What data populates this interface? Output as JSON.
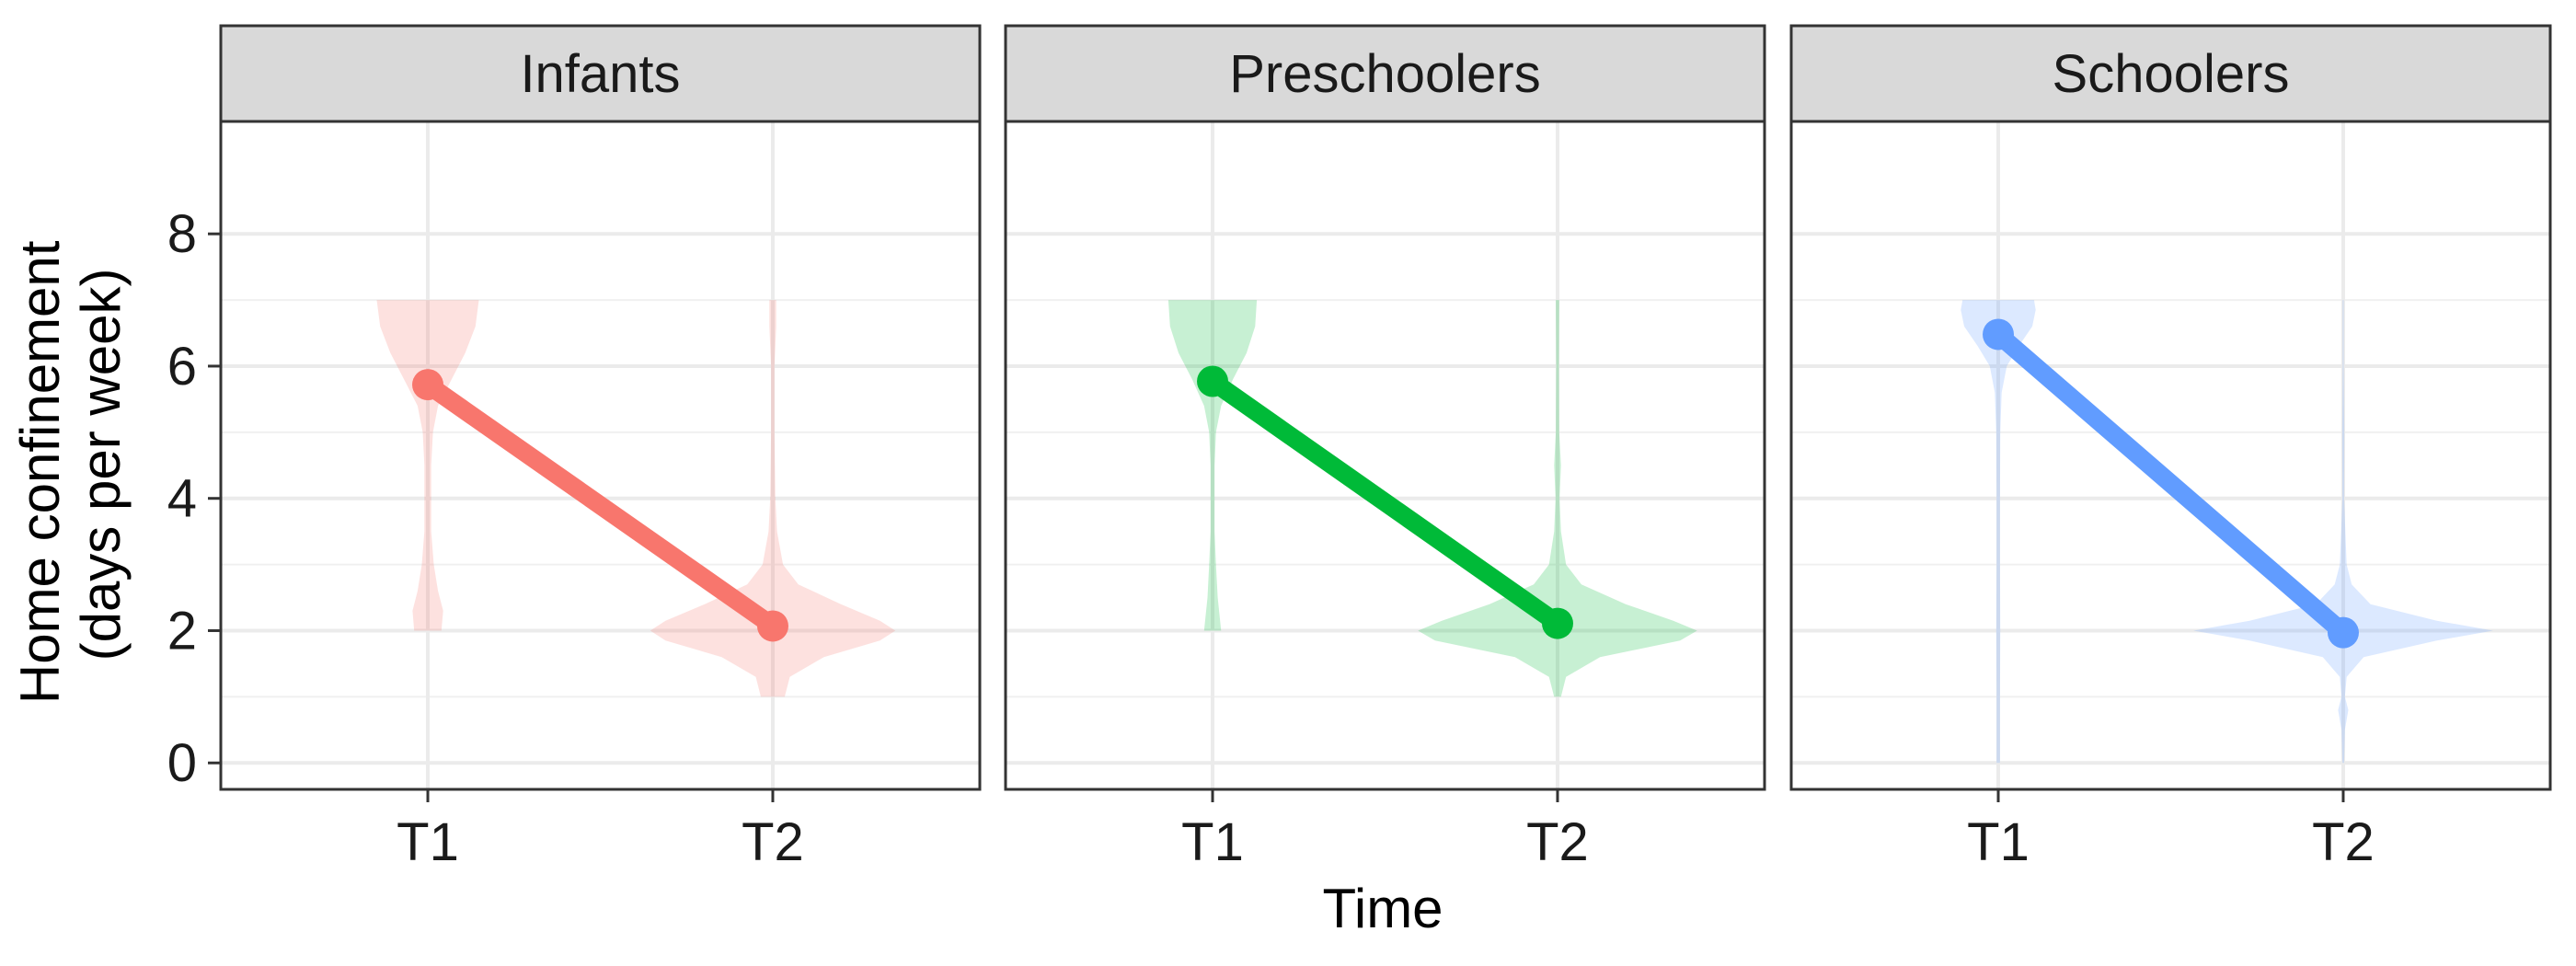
{
  "chart_data": {
    "type": "violin-line",
    "xlabel": "Time",
    "ylabel_lines": [
      "Home confinement",
      "(days per week)"
    ],
    "ylim": [
      -0.4,
      9.7
    ],
    "yticks": [
      0,
      2,
      4,
      6,
      8
    ],
    "categories": [
      "T1",
      "T2"
    ],
    "panels": [
      {
        "name": "Infants",
        "color": "#F8766D",
        "means": [
          5.72,
          2.07
        ],
        "violins": [
          {
            "category": "T1",
            "profile": [
              [
                2.0,
                0.08
              ],
              [
                2.3,
                0.09
              ],
              [
                2.6,
                0.06
              ],
              [
                3.0,
                0.035
              ],
              [
                3.5,
                0.02
              ],
              [
                4.0,
                0.02
              ],
              [
                4.5,
                0.02
              ],
              [
                5.0,
                0.03
              ],
              [
                5.4,
                0.06
              ],
              [
                5.8,
                0.14
              ],
              [
                6.2,
                0.22
              ],
              [
                6.6,
                0.28
              ],
              [
                7.0,
                0.3
              ]
            ]
          },
          {
            "category": "T2",
            "profile": [
              [
                1.0,
                0.07
              ],
              [
                1.3,
                0.1
              ],
              [
                1.6,
                0.3
              ],
              [
                1.85,
                0.63
              ],
              [
                2.0,
                0.72
              ],
              [
                2.15,
                0.63
              ],
              [
                2.4,
                0.4
              ],
              [
                2.7,
                0.15
              ],
              [
                3.0,
                0.06
              ],
              [
                3.5,
                0.025
              ],
              [
                4.0,
                0.015
              ],
              [
                5.0,
                0.01
              ],
              [
                6.0,
                0.01
              ],
              [
                6.6,
                0.02
              ],
              [
                7.0,
                0.02
              ]
            ]
          }
        ]
      },
      {
        "name": "Preschoolers",
        "color": "#00BA38",
        "means": [
          5.77,
          2.11
        ],
        "violins": [
          {
            "category": "T1",
            "profile": [
              [
                2.0,
                0.05
              ],
              [
                2.5,
                0.03
              ],
              [
                3.0,
                0.02
              ],
              [
                3.5,
                0.012
              ],
              [
                4.0,
                0.012
              ],
              [
                4.5,
                0.012
              ],
              [
                5.0,
                0.02
              ],
              [
                5.4,
                0.05
              ],
              [
                5.8,
                0.12
              ],
              [
                6.2,
                0.2
              ],
              [
                6.6,
                0.25
              ],
              [
                7.0,
                0.26
              ]
            ]
          },
          {
            "category": "T2",
            "profile": [
              [
                1.0,
                0.02
              ],
              [
                1.3,
                0.05
              ],
              [
                1.6,
                0.25
              ],
              [
                1.85,
                0.72
              ],
              [
                2.0,
                0.82
              ],
              [
                2.15,
                0.68
              ],
              [
                2.4,
                0.4
              ],
              [
                2.7,
                0.14
              ],
              [
                3.0,
                0.05
              ],
              [
                3.5,
                0.02
              ],
              [
                4.0,
                0.012
              ],
              [
                4.5,
                0.02
              ],
              [
                5.0,
                0.01
              ],
              [
                6.0,
                0.008
              ],
              [
                7.0,
                0.01
              ]
            ]
          }
        ]
      },
      {
        "name": "Schoolers",
        "color": "#619CFF",
        "means": [
          6.48,
          1.97
        ],
        "violins": [
          {
            "category": "T1",
            "profile": [
              [
                0.0,
                0.01
              ],
              [
                1.0,
                0.01
              ],
              [
                2.0,
                0.012
              ],
              [
                3.0,
                0.01
              ],
              [
                4.0,
                0.01
              ],
              [
                5.0,
                0.012
              ],
              [
                5.6,
                0.02
              ],
              [
                6.0,
                0.05
              ],
              [
                6.3,
                0.12
              ],
              [
                6.6,
                0.2
              ],
              [
                6.85,
                0.22
              ],
              [
                7.0,
                0.21
              ]
            ]
          },
          {
            "category": "T2",
            "profile": [
              [
                0.0,
                0.005
              ],
              [
                0.5,
                0.01
              ],
              [
                0.8,
                0.03
              ],
              [
                1.0,
                0.01
              ],
              [
                1.3,
                0.02
              ],
              [
                1.6,
                0.12
              ],
              [
                1.85,
                0.55
              ],
              [
                2.0,
                0.88
              ],
              [
                2.15,
                0.55
              ],
              [
                2.4,
                0.16
              ],
              [
                2.7,
                0.05
              ],
              [
                3.0,
                0.02
              ],
              [
                4.0,
                0.005
              ],
              [
                5.0,
                0.006
              ],
              [
                6.0,
                0.003
              ],
              [
                7.0,
                0.003
              ]
            ]
          }
        ]
      }
    ]
  }
}
